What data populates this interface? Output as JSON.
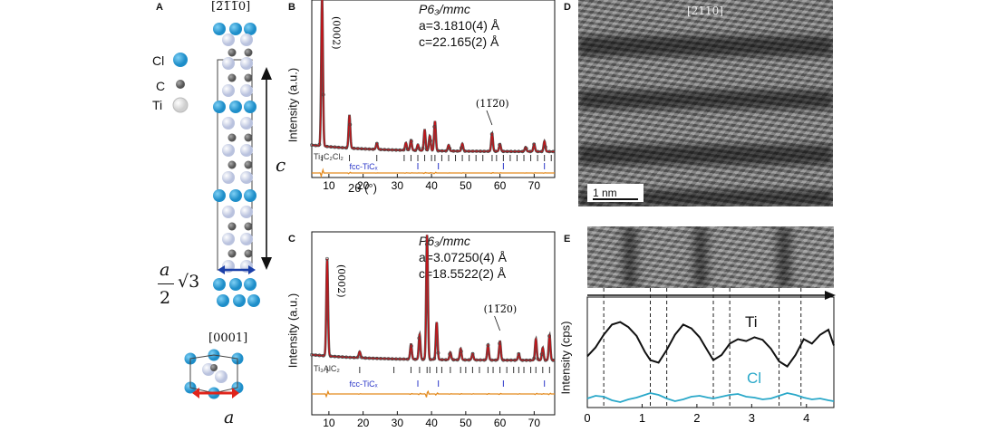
{
  "panel_labels": {
    "a": "A",
    "b": "B",
    "c": "C",
    "d": "D",
    "e": "E"
  },
  "panel_a": {
    "zone_top": "[2̅1̅1̅0]",
    "zone_bottom": "[0001]",
    "legend": [
      {
        "label": "Cl",
        "color": "#1e8ec9"
      },
      {
        "label": "C",
        "color": "#555555"
      },
      {
        "label": "Ti",
        "color": "#e6e6e6"
      }
    ],
    "c_label": "c",
    "a_label": "a",
    "a_over_2_num": "a",
    "a_over_2_den": "2",
    "sqrt3": "√3",
    "colors": {
      "cl": "#1e8ec9",
      "ti": "#b9c2de",
      "c": "#555555",
      "arrow_red": "#e0241b",
      "arrow_blue": "#1b3fa8"
    }
  },
  "panel_b": {
    "phase": "P6₃/mmc",
    "lattice_a": "a=3.1810(4) Å",
    "lattice_c": "c=22.165(2) Å",
    "peak_0002": "(0002)",
    "peak_1120": "(11̅2̅0)",
    "ylabel": "Intensity (a.u.)",
    "xlabel": "2θ (°)",
    "phase1": "Ti₃C₂Cl₂",
    "phase2": "fcc-TiCₓ",
    "x_ticks": [
      10,
      20,
      30,
      40,
      50,
      60,
      70
    ],
    "xlim": [
      5,
      76
    ]
  },
  "panel_c": {
    "phase": "P6₃/mmc",
    "lattice_a": "a=3.07250(4) Å",
    "lattice_c": "c=18.5522(2) Å",
    "peak_0002": "(0002)",
    "peak_1120": "(11̅2̅0)",
    "ylabel": "Intensity (a.u.)",
    "phase1": "Ti₃AlC₂",
    "phase2": "fcc-TiCₓ",
    "x_ticks": [
      10,
      20,
      30,
      40,
      50,
      60,
      70
    ],
    "xlim": [
      5,
      76
    ]
  },
  "panel_d": {
    "zone": "[2̅1̅1̅0]",
    "scale_bar": "1 nm"
  },
  "panel_e": {
    "ylabel": "Intensity (cps)",
    "ti_label": "Ti",
    "cl_label": "Cl",
    "x_ticks": [
      0,
      1,
      2,
      3,
      4
    ],
    "xlim": [
      0,
      4.5
    ]
  },
  "chart_data": [
    {
      "type": "line",
      "panel": "B",
      "ylabel": "Intensity (a.u.)",
      "xlabel": "2θ (°)",
      "xlim": [
        5,
        76
      ],
      "peaks": [
        {
          "x": 8.0,
          "h": 1.0,
          "label": "(0002)"
        },
        {
          "x": 16.0,
          "h": 0.22
        },
        {
          "x": 24.0,
          "h": 0.04
        },
        {
          "x": 32.5,
          "h": 0.05
        },
        {
          "x": 34.0,
          "h": 0.07
        },
        {
          "x": 36.0,
          "h": 0.04
        },
        {
          "x": 38.0,
          "h": 0.14
        },
        {
          "x": 39.5,
          "h": 0.1
        },
        {
          "x": 41.0,
          "h": 0.2
        },
        {
          "x": 45.0,
          "h": 0.04
        },
        {
          "x": 49.0,
          "h": 0.05
        },
        {
          "x": 57.7,
          "h": 0.12,
          "label": "(11̅2̅0)"
        },
        {
          "x": 60.0,
          "h": 0.05
        },
        {
          "x": 67.5,
          "h": 0.03
        },
        {
          "x": 70.0,
          "h": 0.05
        },
        {
          "x": 73.0,
          "h": 0.07
        }
      ],
      "ticks_phase1": [
        8,
        16,
        24,
        32,
        34,
        36,
        38,
        40,
        41,
        43,
        45,
        47,
        49,
        51,
        53,
        55,
        57.7,
        59,
        61,
        63,
        65,
        67,
        69,
        71,
        73,
        75
      ],
      "ticks_phase2": [
        36,
        42,
        61,
        73
      ]
    },
    {
      "type": "line",
      "panel": "C",
      "ylabel": "Intensity (a.u.)",
      "xlim": [
        5,
        76
      ],
      "peaks": [
        {
          "x": 9.5,
          "h": 0.78,
          "label": "(0002)"
        },
        {
          "x": 19.0,
          "h": 0.05
        },
        {
          "x": 34.0,
          "h": 0.12
        },
        {
          "x": 36.5,
          "h": 0.2
        },
        {
          "x": 38.7,
          "h": 1.0
        },
        {
          "x": 41.5,
          "h": 0.3
        },
        {
          "x": 45.5,
          "h": 0.06
        },
        {
          "x": 48.5,
          "h": 0.09
        },
        {
          "x": 52.0,
          "h": 0.05
        },
        {
          "x": 56.5,
          "h": 0.12
        },
        {
          "x": 60.0,
          "h": 0.15,
          "label": "(11̅2̅0)"
        },
        {
          "x": 65.5,
          "h": 0.05
        },
        {
          "x": 70.5,
          "h": 0.17
        },
        {
          "x": 72.5,
          "h": 0.1
        },
        {
          "x": 74.5,
          "h": 0.2
        }
      ],
      "ticks_phase1": [
        9.5,
        19,
        29,
        34,
        36.5,
        38.7,
        39.5,
        41.5,
        43,
        45.5,
        48.5,
        50,
        52,
        54,
        56.5,
        58,
        60,
        62,
        64,
        65.5,
        67,
        69,
        70.5,
        72.5,
        74.5
      ],
      "ticks_phase2": [
        36,
        42,
        61,
        73
      ]
    },
    {
      "type": "line",
      "panel": "E",
      "ylabel": "Intensity (cps)",
      "xlim": [
        0,
        4.5
      ],
      "dashed_x": [
        0.3,
        1.15,
        1.45,
        2.3,
        2.6,
        3.5,
        3.9
      ],
      "series": [
        {
          "name": "Ti",
          "color": "#111111",
          "x": [
            0,
            0.15,
            0.3,
            0.45,
            0.6,
            0.75,
            0.9,
            1.05,
            1.15,
            1.3,
            1.45,
            1.6,
            1.75,
            1.9,
            2.05,
            2.2,
            2.3,
            2.45,
            2.6,
            2.75,
            2.9,
            3.05,
            3.2,
            3.35,
            3.5,
            3.65,
            3.8,
            3.95,
            4.1,
            4.25,
            4.4,
            4.5
          ],
          "y": [
            0.28,
            0.42,
            0.62,
            0.78,
            0.82,
            0.74,
            0.6,
            0.35,
            0.22,
            0.18,
            0.38,
            0.62,
            0.78,
            0.72,
            0.58,
            0.36,
            0.22,
            0.3,
            0.48,
            0.55,
            0.52,
            0.58,
            0.54,
            0.4,
            0.2,
            0.12,
            0.3,
            0.55,
            0.48,
            0.62,
            0.7,
            0.45
          ]
        },
        {
          "name": "Cl",
          "color": "#2aa8c9",
          "x": [
            0,
            0.15,
            0.3,
            0.45,
            0.6,
            0.75,
            0.9,
            1.05,
            1.15,
            1.3,
            1.45,
            1.6,
            1.75,
            1.9,
            2.05,
            2.2,
            2.3,
            2.45,
            2.6,
            2.75,
            2.9,
            3.05,
            3.2,
            3.35,
            3.5,
            3.65,
            3.8,
            3.95,
            4.1,
            4.25,
            4.4,
            4.5
          ],
          "y": [
            0.12,
            0.18,
            0.16,
            0.08,
            0.04,
            0.1,
            0.14,
            0.2,
            0.24,
            0.2,
            0.12,
            0.06,
            0.1,
            0.16,
            0.18,
            0.14,
            0.12,
            0.16,
            0.2,
            0.22,
            0.16,
            0.14,
            0.1,
            0.12,
            0.18,
            0.24,
            0.2,
            0.14,
            0.1,
            0.12,
            0.08,
            0.06
          ]
        }
      ]
    }
  ]
}
